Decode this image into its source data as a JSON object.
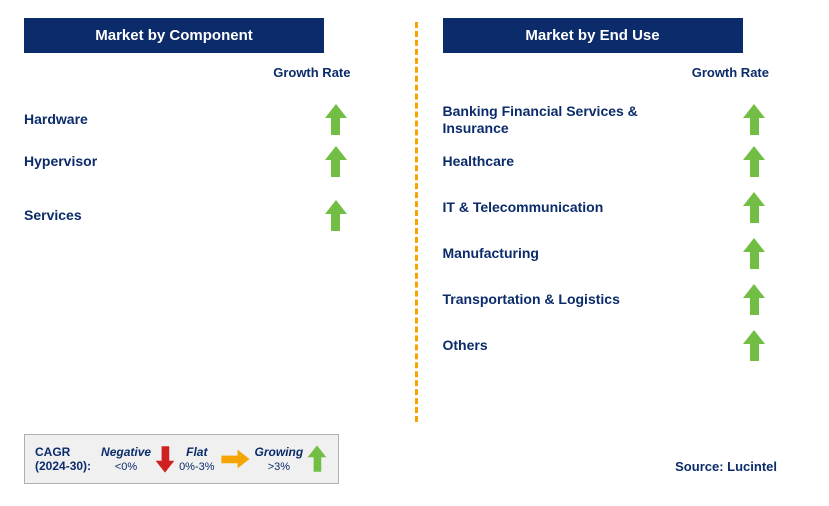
{
  "colors": {
    "navy": "#0b2b6a",
    "green": "#72be44",
    "red": "#cf2120",
    "yellow": "#f5a500",
    "divider": "#f5a500",
    "text_dark": "#0b2b6a",
    "legend_bg": "#f0f0f0",
    "legend_border": "#b0b0b0"
  },
  "left": {
    "title": "Market by Component",
    "growth_label": "Growth Rate",
    "items": [
      {
        "label": "Hardware",
        "trend": "up"
      },
      {
        "label": "Hypervisor",
        "trend": "up"
      },
      {
        "label": "Services",
        "trend": "up"
      }
    ]
  },
  "right": {
    "title": "Market by End Use",
    "growth_label": "Growth Rate",
    "items": [
      {
        "label": "Banking Financial Services & Insurance",
        "trend": "up"
      },
      {
        "label": "Healthcare",
        "trend": "up"
      },
      {
        "label": "IT & Telecommunication",
        "trend": "up"
      },
      {
        "label": "Manufacturing",
        "trend": "up"
      },
      {
        "label": "Transportation & Logistics",
        "trend": "up"
      },
      {
        "label": "Others",
        "trend": "up"
      }
    ]
  },
  "legend": {
    "title_line1": "CAGR",
    "title_line2": "(2024-30):",
    "items": [
      {
        "category": "Negative",
        "range": "<0%",
        "arrow": "down",
        "color_key": "red"
      },
      {
        "category": "Flat",
        "range": "0%-3%",
        "arrow": "right",
        "color_key": "yellow"
      },
      {
        "category": "Growing",
        "range": ">3%",
        "arrow": "up",
        "color_key": "green"
      }
    ]
  },
  "source": "Source: Lucintel"
}
